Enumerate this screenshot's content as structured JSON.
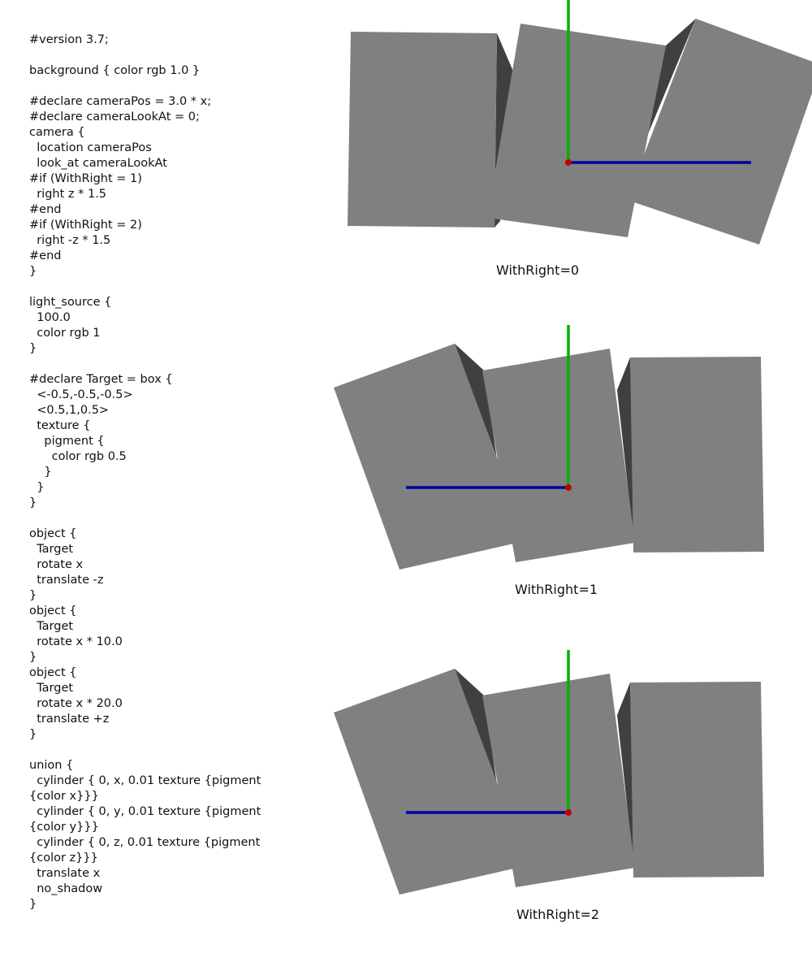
{
  "code_lines": [
    "#version 3.7;",
    "",
    "background { color rgb 1.0 }",
    "",
    "#declare cameraPos = 3.0 * x;",
    "#declare cameraLookAt = 0;",
    "camera {",
    "  location cameraPos",
    "  look_at cameraLookAt",
    "#if (WithRight = 1)",
    "  right z * 1.5",
    "#end",
    "#if (WithRight = 2)",
    "  right -z * 1.5",
    "#end",
    "}",
    "",
    "light_source {",
    "  100.0",
    "  color rgb 1",
    "}",
    "",
    "#declare Target = box {",
    "  <-0.5,-0.5,-0.5>",
    "  <0.5,1,0.5>",
    "  texture {",
    "    pigment {",
    "      color rgb 0.5",
    "    }",
    "  }",
    "}",
    "",
    "object {",
    "  Target",
    "  rotate x",
    "  translate -z",
    "}",
    "object {",
    "  Target",
    "  rotate x * 10.0",
    "}",
    "object {",
    "  Target",
    "  rotate x * 20.0",
    "  translate +z",
    "}",
    "",
    "union {",
    "  cylinder { 0, x, 0.01 texture {pigment",
    "{color x}}}",
    "  cylinder { 0, y, 0.01 texture {pigment",
    "{color y}}}",
    "  cylinder { 0, z, 0.01 texture {pigment",
    "{color z}}}",
    "  translate x",
    "  no_shadow",
    "}"
  ],
  "renders": [
    {
      "caption": "WithRight=0"
    },
    {
      "caption": "WithRight=1"
    },
    {
      "caption": "WithRight=2"
    }
  ],
  "colors": {
    "box_face": "#808080",
    "box_shadow_face": "#404040",
    "axis_x": "#c00000",
    "axis_y": "#00b000",
    "axis_z": "#0000a0",
    "background": "#ffffff"
  }
}
